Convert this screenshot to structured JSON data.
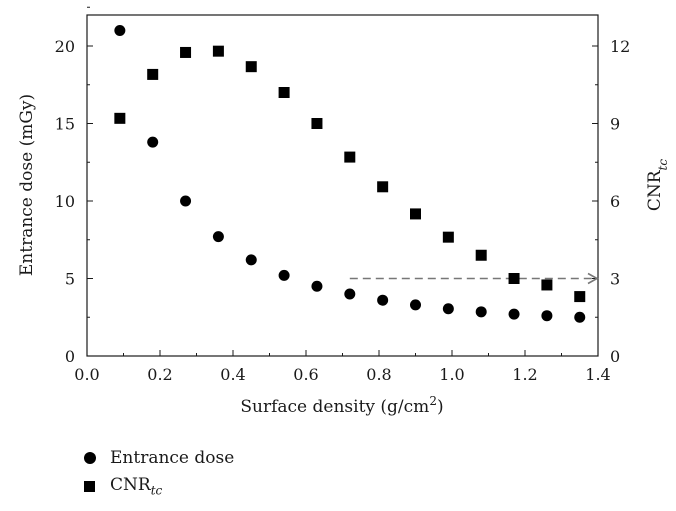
{
  "chart_data": {
    "type": "scatter",
    "xlabel": "Surface density (g/cm²)",
    "ylabel_left": "Entrance dose (mGy)",
    "ylabel_right": "CNR",
    "ylabel_right_sub": "tc",
    "xlim": [
      0.0,
      1.4
    ],
    "ylim_left": [
      0,
      22
    ],
    "ylim_right": [
      0,
      13.2
    ],
    "x_ticks": [
      "0.0",
      "0.2",
      "0.4",
      "0.6",
      "0.8",
      "1.0",
      "1.2",
      "1.4"
    ],
    "y_left_ticks": [
      "0",
      "5",
      "10",
      "15",
      "20"
    ],
    "y_right_ticks": [
      "0",
      "3",
      "6",
      "9",
      "12"
    ],
    "series": [
      {
        "name": "Entrance dose",
        "marker": "circle",
        "axis": "left",
        "x": [
          0.09,
          0.18,
          0.27,
          0.36,
          0.45,
          0.54,
          0.63,
          0.72,
          0.81,
          0.9,
          0.99,
          1.08,
          1.17,
          1.26,
          1.35
        ],
        "y": [
          21.0,
          13.8,
          10.0,
          7.7,
          6.2,
          5.2,
          4.5,
          4.0,
          3.6,
          3.3,
          3.05,
          2.85,
          2.7,
          2.6,
          2.5
        ]
      },
      {
        "name": "CNR",
        "name_sub": "tc",
        "marker": "square",
        "axis": "right",
        "x": [
          0.09,
          0.18,
          0.27,
          0.36,
          0.45,
          0.54,
          0.63,
          0.72,
          0.81,
          0.9,
          0.99,
          1.08,
          1.17,
          1.26,
          1.35
        ],
        "y": [
          9.2,
          10.9,
          11.75,
          11.8,
          11.2,
          10.2,
          9.0,
          7.7,
          6.55,
          5.5,
          4.6,
          3.9,
          3.0,
          2.75,
          2.3
        ]
      }
    ],
    "annotations": [
      {
        "type": "dashed-arrow",
        "axis": "right",
        "x_from": 0.72,
        "x_to": 1.4,
        "y": 3.0,
        "color": "#777777"
      }
    ],
    "legend_placement": "bottom-left",
    "grid": false
  }
}
